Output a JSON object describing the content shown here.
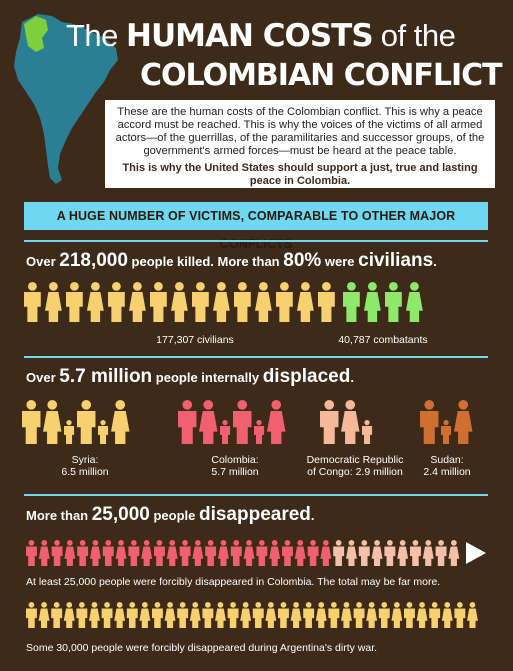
{
  "title": {
    "line1_prefix": "The",
    "line1_main": "HUMAN COSTS",
    "line1_suffix": "of the",
    "line2": "COLOMBIAN CONFLICT"
  },
  "intro": {
    "body": "These are the human costs of the Colombian conflict. This is why a peace accord must be reached. This is why the voices of the victims of all armed actors—of the guerrillas, of the paramilitaries and successor groups, of the government's armed forces—must be heard at the peace table.",
    "closing": "This is why the United States should support a just, true and lasting peace in Colombia."
  },
  "banner": "A HUGE NUMBER OF VICTIMS, COMPARABLE TO OTHER MAJOR CONFLICTS",
  "killed": {
    "pre": "Over ",
    "num": "218,000",
    "mid": " people killed. More than ",
    "pct": "80%",
    "mid2": " were ",
    "word": "civilians",
    "end": ".",
    "civilians_label": "177,307 civilians",
    "combatants_label": "40,787 combatants",
    "civilian_count": 15,
    "combatant_count": 4,
    "civilian_color": "#f7d070",
    "combatant_color": "#8ee86a"
  },
  "displaced": {
    "pre": "Over ",
    "num": "5.7 million",
    "mid": " people internally ",
    "word": "displaced",
    "end": ".",
    "groups": [
      {
        "label_line1": "Syria:",
        "label_line2": "6.5 million",
        "color": "#f7d070"
      },
      {
        "label_line1": "Colombia:",
        "label_line2": "5.7 million",
        "color": "#f06070"
      },
      {
        "label_line1": "Democratic Republic",
        "label_line2": "of Congo: 2.9 million",
        "color": "#f5b898"
      },
      {
        "label_line1": "Sudan:",
        "label_line2": "2.4 million",
        "color": "#d07030"
      }
    ]
  },
  "disappeared": {
    "pre": "More than ",
    "num": "25,000",
    "mid": " people ",
    "word": "disappeared",
    "end": ".",
    "colombia_text": "At least 25,000 people were forcibly disappeared in Colombia. The total may be far more.",
    "argentina_text": "Some 30,000 people were forcibly disappeared during Argentina's dirty war.",
    "colombia_color": "#f06070",
    "colombia_fade_color": "#f5c0a8",
    "argentina_color": "#f7d070"
  },
  "colors": {
    "background": "#3d2a18",
    "accent": "#6fd7ef",
    "map_fill": "#2a7f95",
    "colombia_green": "#7ed03a"
  }
}
